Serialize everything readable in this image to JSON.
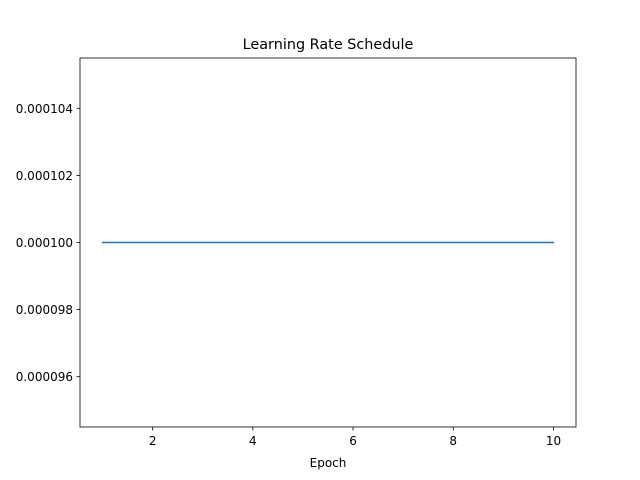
{
  "chart_data": {
    "type": "line",
    "title": "Learning Rate Schedule",
    "xlabel": "Epoch",
    "ylabel": "",
    "x": [
      1,
      2,
      3,
      4,
      5,
      6,
      7,
      8,
      9,
      10
    ],
    "series": [
      {
        "values": [
          0.0001,
          0.0001,
          0.0001,
          0.0001,
          0.0001,
          0.0001,
          0.0001,
          0.0001,
          0.0001,
          0.0001
        ],
        "color": "#1f77b4"
      }
    ],
    "xlim": [
      0.55,
      10.45
    ],
    "ylim": [
      9.45e-05,
      0.0001055
    ],
    "xticks": [
      2,
      4,
      6,
      8,
      10
    ],
    "xtick_labels": [
      "2",
      "4",
      "6",
      "8",
      "10"
    ],
    "yticks": [
      9.6e-05,
      9.8e-05,
      0.0001,
      0.000102,
      0.000104
    ],
    "ytick_labels": [
      "0.000096",
      "0.000098",
      "0.000100",
      "0.000102",
      "0.000104"
    ],
    "grid": false,
    "legend": "none"
  }
}
